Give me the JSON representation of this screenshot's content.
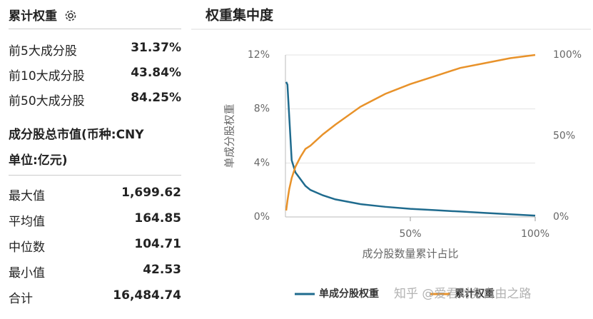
{
  "panel": {
    "title": "累计权重",
    "top_rows": [
      [
        "前5大成分股",
        "31.37%"
      ],
      [
        "前10大成分股",
        "43.84%"
      ],
      [
        "前50大成分股",
        "84.25%"
      ]
    ],
    "section_title": [
      "成分股总市值(币种:CNY",
      "单位:亿元)"
    ],
    "stat_rows": [
      [
        "最大值",
        "1,699.62"
      ],
      [
        "平均值",
        "164.85"
      ],
      [
        "中位数",
        "104.71"
      ],
      [
        "最小值",
        "42.53"
      ],
      [
        "合计",
        "16,484.74"
      ]
    ]
  },
  "chart_data": {
    "type": "line",
    "title": "权重集中度",
    "x_label": "成分股数量累计占比",
    "y_label": "单成分股权重",
    "watermark": "知乎 @爱君财务自由之路",
    "x": [
      0.3,
      0.8,
      1.5,
      2.5,
      4,
      6,
      8,
      10,
      15,
      20,
      30,
      40,
      50,
      60,
      70,
      80,
      90,
      100
    ],
    "series": [
      {
        "name": "单成分股权重",
        "color": "#1f6b8e",
        "values": [
          10,
          9.8,
          7.5,
          4.2,
          3.3,
          2.8,
          2.3,
          2.0,
          1.6,
          1.3,
          0.95,
          0.75,
          0.6,
          0.5,
          0.4,
          0.3,
          0.2,
          0.1
        ]
      },
      {
        "name": "累计权重",
        "color": "#e8922a",
        "axis": "y2",
        "values": [
          4,
          10,
          17,
          24,
          31,
          37,
          42,
          44,
          51,
          57,
          68,
          76,
          82,
          87,
          92,
          95,
          98,
          100
        ]
      }
    ],
    "xlim": [
      0,
      100
    ],
    "xticks": [
      {
        "value": 50,
        "label": "50%"
      },
      {
        "value": 100,
        "label": "100%"
      }
    ],
    "ylim": [
      0,
      12
    ],
    "yticks": [
      {
        "value": 0,
        "label": "0%"
      },
      {
        "value": 4,
        "label": "4%"
      },
      {
        "value": 8,
        "label": "8%"
      },
      {
        "value": 12,
        "label": "12%"
      }
    ],
    "y2lim": [
      0,
      100
    ],
    "y2ticks": [
      {
        "value": 0,
        "label": "0%"
      },
      {
        "value": 50,
        "label": "50%"
      },
      {
        "value": 100,
        "label": "100%"
      }
    ],
    "grid": true
  }
}
